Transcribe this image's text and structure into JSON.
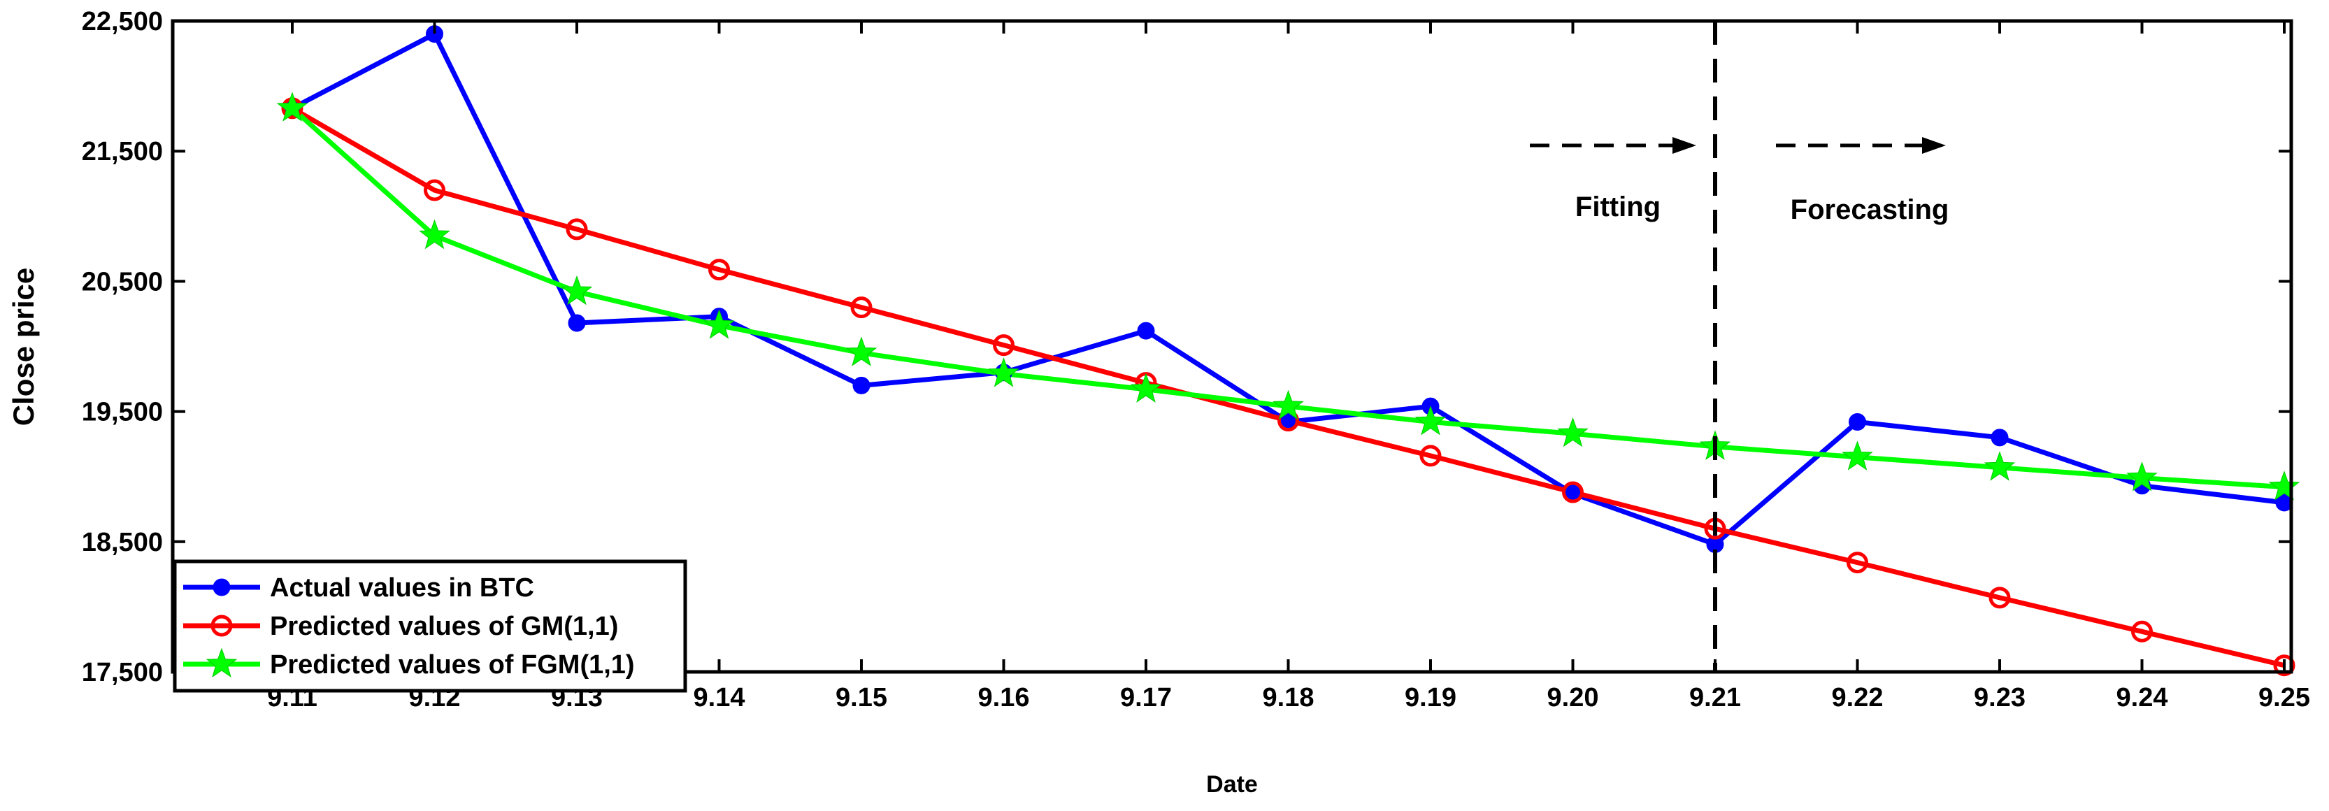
{
  "chart_data": {
    "type": "line",
    "xlabel": "Date",
    "ylabel": "Close price",
    "categories": [
      "9.11",
      "9.12",
      "9.13",
      "9.14",
      "9.15",
      "9.16",
      "9.17",
      "9.18",
      "9.19",
      "9.20",
      "9.21",
      "9.22",
      "9.23",
      "9.24",
      "9.25"
    ],
    "ylim": [
      17500,
      22500
    ],
    "yticks": [
      17500,
      18500,
      19500,
      20500,
      21500,
      22500
    ],
    "ytick_labels": [
      "17,500",
      "18,500",
      "19,500",
      "20,500",
      "21,500",
      "22,500"
    ],
    "grid": false,
    "legend_position": "bottom-left",
    "series": [
      {
        "name": "Actual values in BTC",
        "color": "#0000ff",
        "marker": "filled-circle",
        "values": [
          21830,
          22400,
          20180,
          20230,
          19700,
          19800,
          20120,
          19420,
          19540,
          18870,
          18480,
          19420,
          19300,
          18930,
          18800
        ]
      },
      {
        "name": "Predicted values of GM(1,1)",
        "color": "#ff0000",
        "marker": "open-circle",
        "values": [
          21830,
          21200,
          20900,
          20590,
          20300,
          20010,
          19720,
          19430,
          19160,
          18880,
          18600,
          18340,
          18070,
          17810,
          17550
        ]
      },
      {
        "name": "Predicted values of FGM(1,1)",
        "color": "#00ff00",
        "marker": "star",
        "values": [
          21830,
          20850,
          20420,
          20160,
          19950,
          19790,
          19670,
          19540,
          19420,
          19330,
          19230,
          19150,
          19070,
          18990,
          18920
        ]
      }
    ],
    "divider_at": "9.21",
    "annotations": {
      "fitting": "Fitting",
      "forecasting": "Forecasting"
    }
  }
}
